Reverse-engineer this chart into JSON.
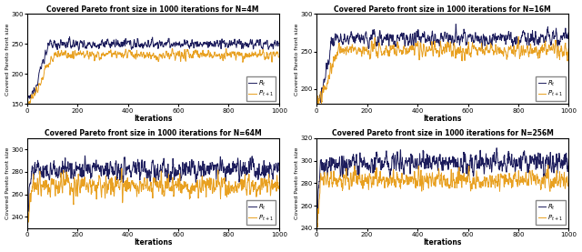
{
  "subplots": [
    {
      "title": "Covered Pareto front size in 1000 iterations for N=4M",
      "ylim": [
        150,
        300
      ],
      "yticks": [
        150,
        200,
        250,
        300
      ],
      "R_mean": 250,
      "R_std": 8,
      "R_start": 155,
      "R_rise": 100,
      "P_mean": 232,
      "P_std": 8,
      "P_start": 155,
      "P_rise": 120,
      "smooth": 4
    },
    {
      "title": "Covered Pareto front size in 1000 iterations for N=16M",
      "ylim": [
        180,
        300
      ],
      "yticks": [
        200,
        250,
        300
      ],
      "R_mean": 268,
      "R_std": 10,
      "R_start": 185,
      "R_rise": 80,
      "P_mean": 252,
      "P_std": 10,
      "P_start": 185,
      "P_rise": 100,
      "smooth": 4
    },
    {
      "title": "Covered Pareto front size in 1000 iterations for N=64M",
      "ylim": [
        230,
        310
      ],
      "yticks": [
        240,
        260,
        280,
        300
      ],
      "R_mean": 282,
      "R_std": 8,
      "R_start": 240,
      "R_rise": 20,
      "P_mean": 267,
      "P_std": 8,
      "P_start": 240,
      "P_rise": 25,
      "smooth": 3
    },
    {
      "title": "Covered Pareto front size in 1000 iterations for N=256M",
      "ylim": [
        240,
        320
      ],
      "yticks": [
        240,
        260,
        280,
        300,
        320
      ],
      "R_mean": 298,
      "R_std": 8,
      "R_start": 248,
      "R_rise": 15,
      "P_mean": 283,
      "P_std": 7,
      "P_start": 248,
      "P_rise": 20,
      "smooth": 3
    }
  ],
  "color_R": "#1c1c5c",
  "color_P": "#e8a020",
  "xlabel": "Iterations",
  "ylabel": "Covered Pareto front size",
  "legend_R": "$R_t$",
  "legend_P": "$P_{t+1}$",
  "n_iter": 1000,
  "xticks": [
    0,
    200,
    400,
    600,
    800,
    1000
  ]
}
